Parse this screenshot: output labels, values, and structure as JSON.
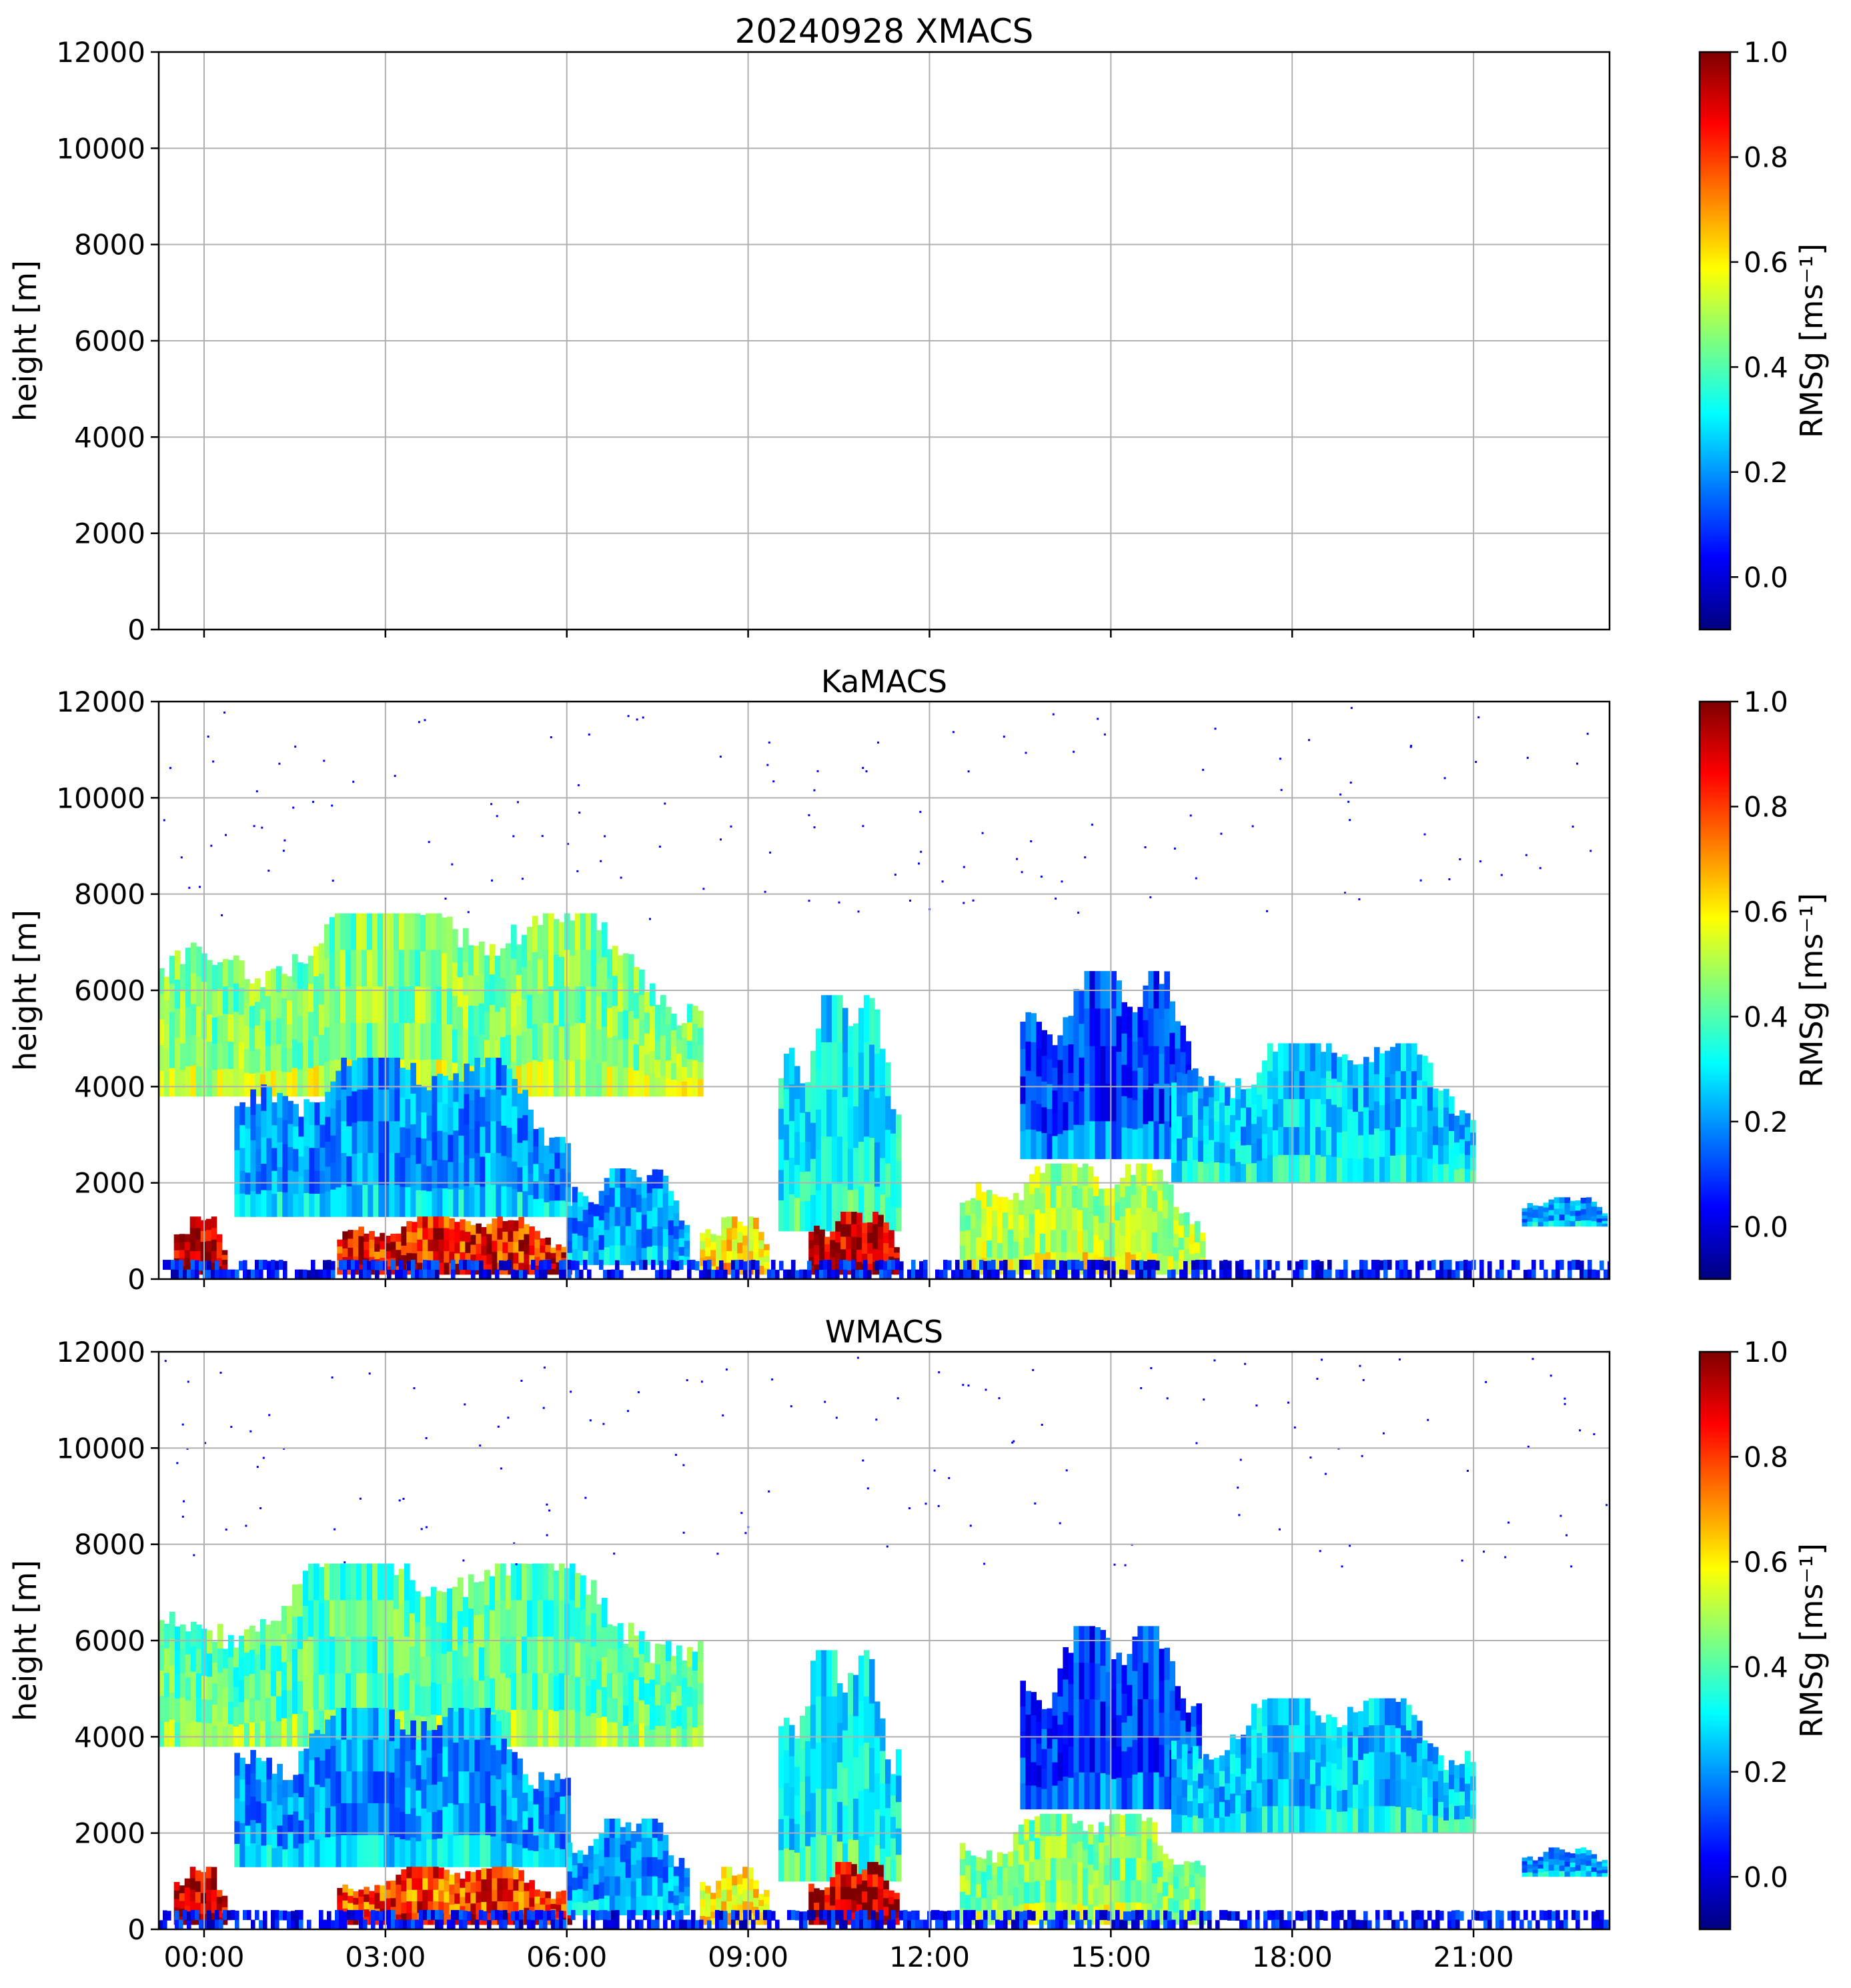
{
  "figure": {
    "date": "20240928"
  },
  "x_tick_labels": [
    "00:00",
    "03:00",
    "06:00",
    "09:00",
    "12:00",
    "15:00",
    "18:00",
    "21:00"
  ],
  "colorbar": {
    "label": "RMSg [ms⁻¹]",
    "ticks": [
      "0.0",
      "0.2",
      "0.4",
      "0.6",
      "0.8",
      "1.0"
    ],
    "colormap": "jet",
    "colors": [
      "#00007f",
      "#0000ff",
      "#007fff",
      "#00ffff",
      "#7fff7f",
      "#ffff00",
      "#ff7f00",
      "#ff0000",
      "#7f0000"
    ]
  },
  "chart_data": [
    {
      "type": "heatmap",
      "title": "20240928 XMACS",
      "xlabel": "",
      "ylabel": "height [m]",
      "x_range_hours": [
        -0.75,
        23.25
      ],
      "ylim": [
        0,
        12000
      ],
      "y_ticks": [
        "0",
        "2000",
        "4000",
        "6000",
        "8000",
        "10000",
        "12000"
      ],
      "clim": [
        -0.1,
        1.0
      ],
      "grid": true,
      "regions": []
    },
    {
      "type": "heatmap",
      "title": "KaMACS",
      "xlabel": "",
      "ylabel": "height [m]",
      "x_range_hours": [
        -0.75,
        23.25
      ],
      "ylim": [
        0,
        12000
      ],
      "y_ticks": [
        "0",
        "2000",
        "4000",
        "6000",
        "8000",
        "10000",
        "12000"
      ],
      "clim": [
        -0.1,
        1.0
      ],
      "grid": true,
      "regions": [
        {
          "name": "upper-cloud-deck",
          "t": [
            -0.75,
            8.2
          ],
          "z": [
            3800,
            7600
          ],
          "rmsg": 0.45
        },
        {
          "name": "deep-cloud-column",
          "t": [
            0.5,
            6.0
          ],
          "z": [
            1300,
            4600
          ],
          "rmsg": 0.2
        },
        {
          "name": "early-precip-core",
          "t": [
            -0.5,
            0.3
          ],
          "z": [
            100,
            1300
          ],
          "rmsg": 0.95
        },
        {
          "name": "melting-layer-rain",
          "t": [
            2.2,
            6.0
          ],
          "z": [
            100,
            1300
          ],
          "rmsg": 0.85
        },
        {
          "name": "convection-0930-1030",
          "t": [
            9.5,
            11.5
          ],
          "z": [
            1000,
            5900
          ],
          "rmsg": 0.3
        },
        {
          "name": "rain-1000-1130",
          "t": [
            10.0,
            11.5
          ],
          "z": [
            100,
            1400
          ],
          "rmsg": 0.95
        },
        {
          "name": "rain-0800-0900",
          "t": [
            8.2,
            9.3
          ],
          "z": [
            100,
            1300
          ],
          "rmsg": 0.6
        },
        {
          "name": "low-cloud-0600-0800",
          "t": [
            6.0,
            8.0
          ],
          "z": [
            300,
            2300
          ],
          "rmsg": 0.2
        },
        {
          "name": "showers-1230-1600",
          "t": [
            12.5,
            16.5
          ],
          "z": [
            100,
            2400
          ],
          "rmsg": 0.5
        },
        {
          "name": "anvil-1330-1630",
          "t": [
            13.5,
            16.5
          ],
          "z": [
            2500,
            6400
          ],
          "rmsg": 0.1
        },
        {
          "name": "midlevel-1600-2100",
          "t": [
            16.0,
            21.0
          ],
          "z": [
            2000,
            4900
          ],
          "rmsg": 0.25
        },
        {
          "name": "small-echo-2130",
          "t": [
            21.8,
            23.2
          ],
          "z": [
            1100,
            1700
          ],
          "rmsg": 0.2
        },
        {
          "name": "surface-clutter",
          "t": [
            -0.75,
            23.25
          ],
          "z": [
            0,
            400
          ],
          "rmsg": 0.05
        }
      ]
    },
    {
      "type": "heatmap",
      "title": "WMACS",
      "xlabel": "",
      "ylabel": "height [m]",
      "x_range_hours": [
        -0.75,
        23.25
      ],
      "ylim": [
        0,
        12000
      ],
      "y_ticks": [
        "0",
        "2000",
        "4000",
        "6000",
        "8000",
        "10000",
        "12000"
      ],
      "clim": [
        -0.1,
        1.0
      ],
      "grid": true,
      "regions": [
        {
          "name": "upper-cloud-deck",
          "t": [
            -0.75,
            8.2
          ],
          "z": [
            3800,
            7600
          ],
          "rmsg": 0.4
        },
        {
          "name": "deep-cloud-column",
          "t": [
            0.5,
            6.0
          ],
          "z": [
            1300,
            4600
          ],
          "rmsg": 0.2
        },
        {
          "name": "early-precip-core",
          "t": [
            -0.5,
            0.3
          ],
          "z": [
            100,
            1300
          ],
          "rmsg": 0.95
        },
        {
          "name": "melting-layer-rain",
          "t": [
            2.2,
            6.0
          ],
          "z": [
            100,
            1300
          ],
          "rmsg": 0.8
        },
        {
          "name": "convection-0930-1030",
          "t": [
            9.5,
            11.5
          ],
          "z": [
            1000,
            5800
          ],
          "rmsg": 0.3
        },
        {
          "name": "rain-1000-1130",
          "t": [
            10.0,
            11.5
          ],
          "z": [
            100,
            1400
          ],
          "rmsg": 0.95
        },
        {
          "name": "rain-0800-0900",
          "t": [
            8.2,
            9.3
          ],
          "z": [
            100,
            1300
          ],
          "rmsg": 0.6
        },
        {
          "name": "low-cloud-0600-0800",
          "t": [
            6.0,
            8.0
          ],
          "z": [
            300,
            2300
          ],
          "rmsg": 0.2
        },
        {
          "name": "showers-1230-1600",
          "t": [
            12.5,
            16.5
          ],
          "z": [
            100,
            2400
          ],
          "rmsg": 0.45
        },
        {
          "name": "anvil-1330-1630",
          "t": [
            13.5,
            16.5
          ],
          "z": [
            2500,
            6300
          ],
          "rmsg": 0.1
        },
        {
          "name": "midlevel-1600-2100",
          "t": [
            16.0,
            21.0
          ],
          "z": [
            2000,
            4800
          ],
          "rmsg": 0.25
        },
        {
          "name": "small-echo-2130",
          "t": [
            21.8,
            23.2
          ],
          "z": [
            1100,
            1700
          ],
          "rmsg": 0.2
        },
        {
          "name": "surface-clutter",
          "t": [
            -0.75,
            23.25
          ],
          "z": [
            0,
            400
          ],
          "rmsg": 0.05
        }
      ]
    }
  ]
}
